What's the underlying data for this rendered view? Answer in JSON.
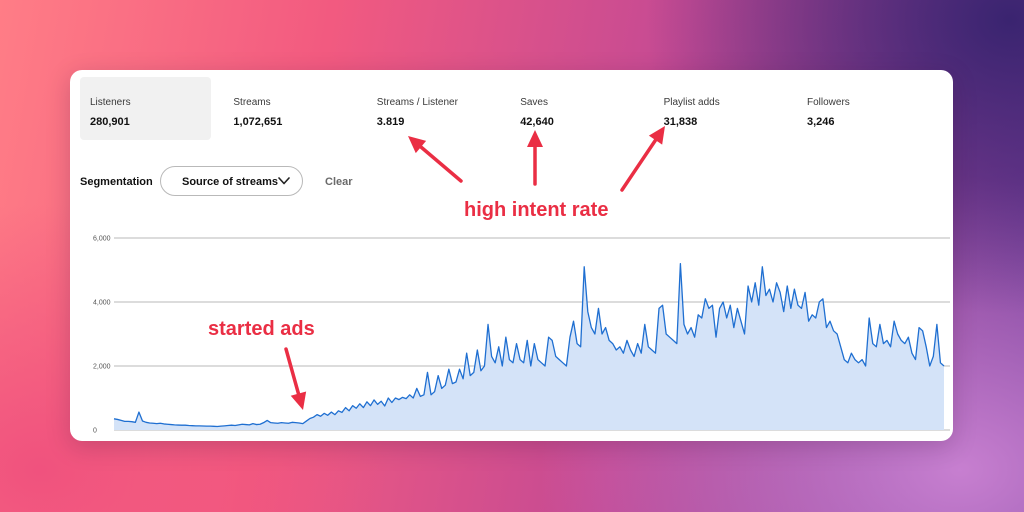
{
  "metrics": [
    {
      "label": "Listeners",
      "value": "280,901",
      "active": true
    },
    {
      "label": "Streams",
      "value": "1,072,651",
      "active": false
    },
    {
      "label": "Streams / Listener",
      "value": "3.819",
      "active": false
    },
    {
      "label": "Saves",
      "value": "42,640",
      "active": false
    },
    {
      "label": "Playlist adds",
      "value": "31,838",
      "active": false
    },
    {
      "label": "Followers",
      "value": "3,246",
      "active": false
    }
  ],
  "segmentation": {
    "label": "Segmentation",
    "selected": "Source of streams",
    "dropdown_icon": "chevron-down-icon",
    "clear_label": "Clear"
  },
  "annotations": {
    "intent": "high intent rate",
    "ads": "started ads",
    "color": "#ea2e44"
  },
  "colors": {
    "line": "#1f6fd1",
    "fill": "#d4e3f8",
    "grid": "#b9b9b9",
    "active_metric_bg": "#f1f1f1"
  },
  "chart_data": {
    "type": "area",
    "title": "",
    "xlabel": "",
    "ylabel": "",
    "ylim": [
      0,
      6000
    ],
    "y_ticks": [
      0,
      2000,
      4000,
      6000
    ],
    "y_tick_labels": [
      "0",
      "2,000",
      "4,000",
      "6,000"
    ],
    "grid": true,
    "series": [
      {
        "values": [
          350,
          330,
          300,
          270,
          270,
          260,
          240,
          560,
          280,
          240,
          220,
          210,
          200,
          210,
          190,
          180,
          170,
          160,
          155,
          150,
          150,
          140,
          135,
          130,
          130,
          125,
          120,
          120,
          115,
          110,
          120,
          130,
          140,
          150,
          140,
          160,
          180,
          170,
          160,
          200,
          170,
          180,
          230,
          300,
          230,
          220,
          210,
          230,
          220,
          210,
          240,
          230,
          220,
          200,
          280,
          360,
          400,
          480,
          430,
          520,
          460,
          560,
          480,
          600,
          550,
          700,
          600,
          760,
          680,
          820,
          700,
          880,
          760,
          940,
          800,
          900,
          750,
          1000,
          860,
          1000,
          950,
          1020,
          980,
          1100,
          1000,
          1300,
          1050,
          1100,
          1800,
          1100,
          1200,
          1700,
          1300,
          1400,
          1900,
          1450,
          1500,
          1900,
          1600,
          2400,
          1700,
          1800,
          2500,
          1850,
          2000,
          3300,
          2300,
          2100,
          2600,
          2000,
          2900,
          2200,
          2100,
          2700,
          2200,
          2100,
          2800,
          2000,
          2700,
          2200,
          2100,
          2000,
          2900,
          2800,
          2300,
          2200,
          2100,
          2000,
          2900,
          3400,
          2700,
          2600,
          5100,
          3700,
          3200,
          3000,
          3800,
          3000,
          3200,
          2800,
          2700,
          2500,
          2600,
          2400,
          2800,
          2500,
          2300,
          2700,
          2400,
          3300,
          2600,
          2500,
          2400,
          3800,
          3900,
          3000,
          2900,
          2800,
          2700,
          5200,
          3300,
          3000,
          3200,
          2900,
          3600,
          3500,
          4100,
          3800,
          3900,
          2900,
          3800,
          4000,
          3500,
          3900,
          3200,
          3800,
          3400,
          3000,
          4500,
          4000,
          4600,
          3900,
          5100,
          4200,
          4400,
          4000,
          4600,
          4300,
          3700,
          4500,
          3800,
          4400,
          3900,
          3800,
          4300,
          3400,
          3600,
          3500,
          4000,
          4100,
          3200,
          3400,
          3100,
          3000,
          2600,
          2200,
          2100,
          2400,
          2200,
          2100,
          2200,
          2000,
          3500,
          2700,
          2600,
          3300,
          2700,
          2800,
          2600,
          3400,
          3000,
          2800,
          2700,
          2900,
          2400,
          2200,
          3200,
          3100,
          2600,
          2000,
          2300,
          3300,
          2100,
          2000
        ]
      }
    ]
  }
}
